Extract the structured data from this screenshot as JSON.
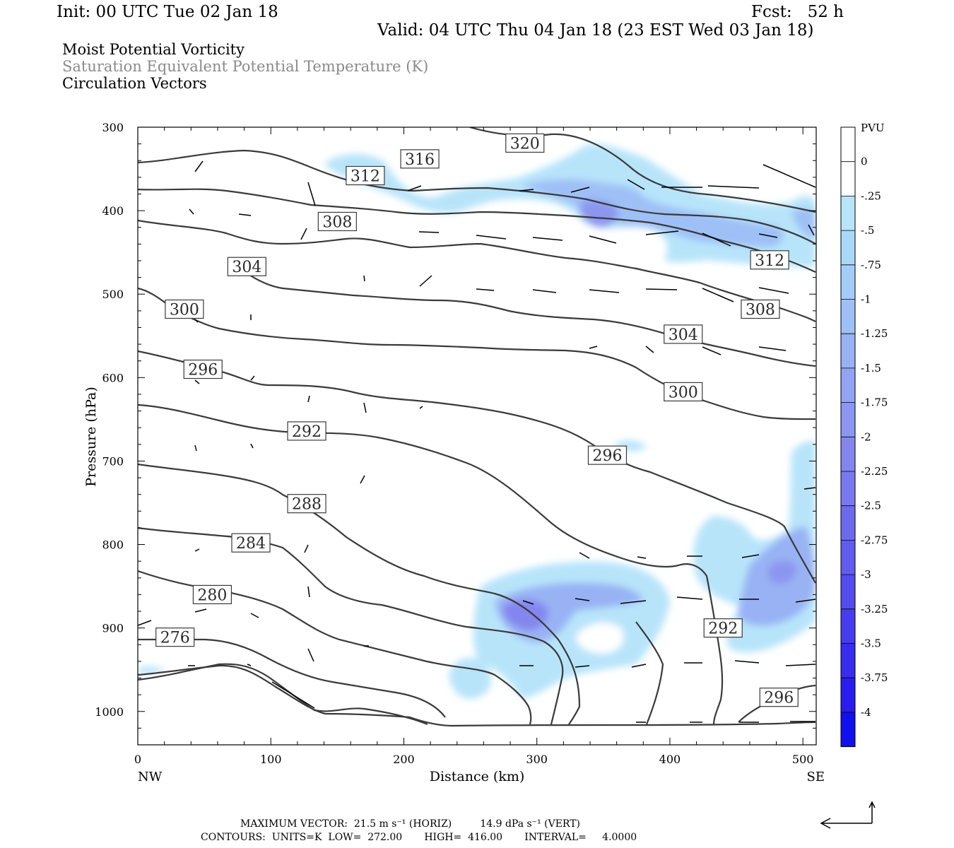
{
  "header": {
    "init": "Init: 00 UTC Tue 02 Jan 18",
    "fcst": "Fcst:   52 h",
    "valid": "Valid: 04 UTC Thu 04 Jan 18 (23 EST Wed 03 Jan 18)",
    "field1": "Moist Potential Vorticity",
    "field2": "Saturation Equivalent Potential Temperature (K)",
    "field3": "Circulation Vectors"
  },
  "footer": {
    "max_vector": "MAXIMUM VECTOR:  21.5 m s⁻¹ (HORIZ)         14.9 dPa s⁻¹ (VERT)",
    "contours": "CONTOURS:  UNITS=K  LOW=  272.00       HIGH=  416.00       INTERVAL=     4.0000"
  },
  "colors": {
    "contour": "#3a3a3a",
    "frame": "#000000",
    "header_grey": "#8a8a8a"
  },
  "chart_data": {
    "type": "contour",
    "xlabel": "Distance (km)",
    "ylabel": "Pressure (hPa)",
    "xlim": [
      0,
      510
    ],
    "ylim": [
      1040,
      300
    ],
    "x_ticks": [
      "0",
      "100",
      "200",
      "300",
      "400",
      "500"
    ],
    "y_ticks": [
      "300",
      "400",
      "500",
      "600",
      "700",
      "800",
      "900",
      "1000"
    ],
    "x_end_labels": {
      "left": "NW",
      "right": "SE"
    },
    "colorbar": {
      "title": "PVU",
      "labels": [
        "0",
        "-.25",
        "-.5",
        "-.75",
        "-1",
        "-1.25",
        "-1.5",
        "-1.75",
        "-2",
        "-2.25",
        "-2.5",
        "-2.75",
        "-3",
        "-3.25",
        "-3.5",
        "-3.75",
        "-4"
      ],
      "colors": [
        "#ffffff",
        "#ffffff",
        "#b8e4fa",
        "#aad8f8",
        "#a4ccf8",
        "#9ec0f6",
        "#98b2f4",
        "#92a4f2",
        "#8c96f0",
        "#8486ee",
        "#7a78ee",
        "#6e6aee",
        "#625cee",
        "#544cee",
        "#463cee",
        "#382cee",
        "#2a1cee",
        "#1010ee"
      ]
    },
    "contour_labels": [
      {
        "text": "320",
        "x": 291,
        "p": 319
      },
      {
        "text": "316",
        "x": 212,
        "p": 338
      },
      {
        "text": "312",
        "x": 171,
        "p": 358
      },
      {
        "text": "312",
        "x": 475,
        "p": 459
      },
      {
        "text": "308",
        "x": 150,
        "p": 413
      },
      {
        "text": "308",
        "x": 468,
        "p": 518
      },
      {
        "text": "304",
        "x": 82,
        "p": 467
      },
      {
        "text": "304",
        "x": 410,
        "p": 548
      },
      {
        "text": "300",
        "x": 35,
        "p": 518
      },
      {
        "text": "300",
        "x": 410,
        "p": 617
      },
      {
        "text": "296",
        "x": 49,
        "p": 590
      },
      {
        "text": "296",
        "x": 353,
        "p": 693
      },
      {
        "text": "296",
        "x": 482,
        "p": 983
      },
      {
        "text": "292",
        "x": 127,
        "p": 664
      },
      {
        "text": "292",
        "x": 440,
        "p": 900
      },
      {
        "text": "288",
        "x": 127,
        "p": 751
      },
      {
        "text": "284",
        "x": 85,
        "p": 798
      },
      {
        "text": "280",
        "x": 56,
        "p": 860
      },
      {
        "text": "276",
        "x": 28,
        "p": 911
      }
    ]
  }
}
